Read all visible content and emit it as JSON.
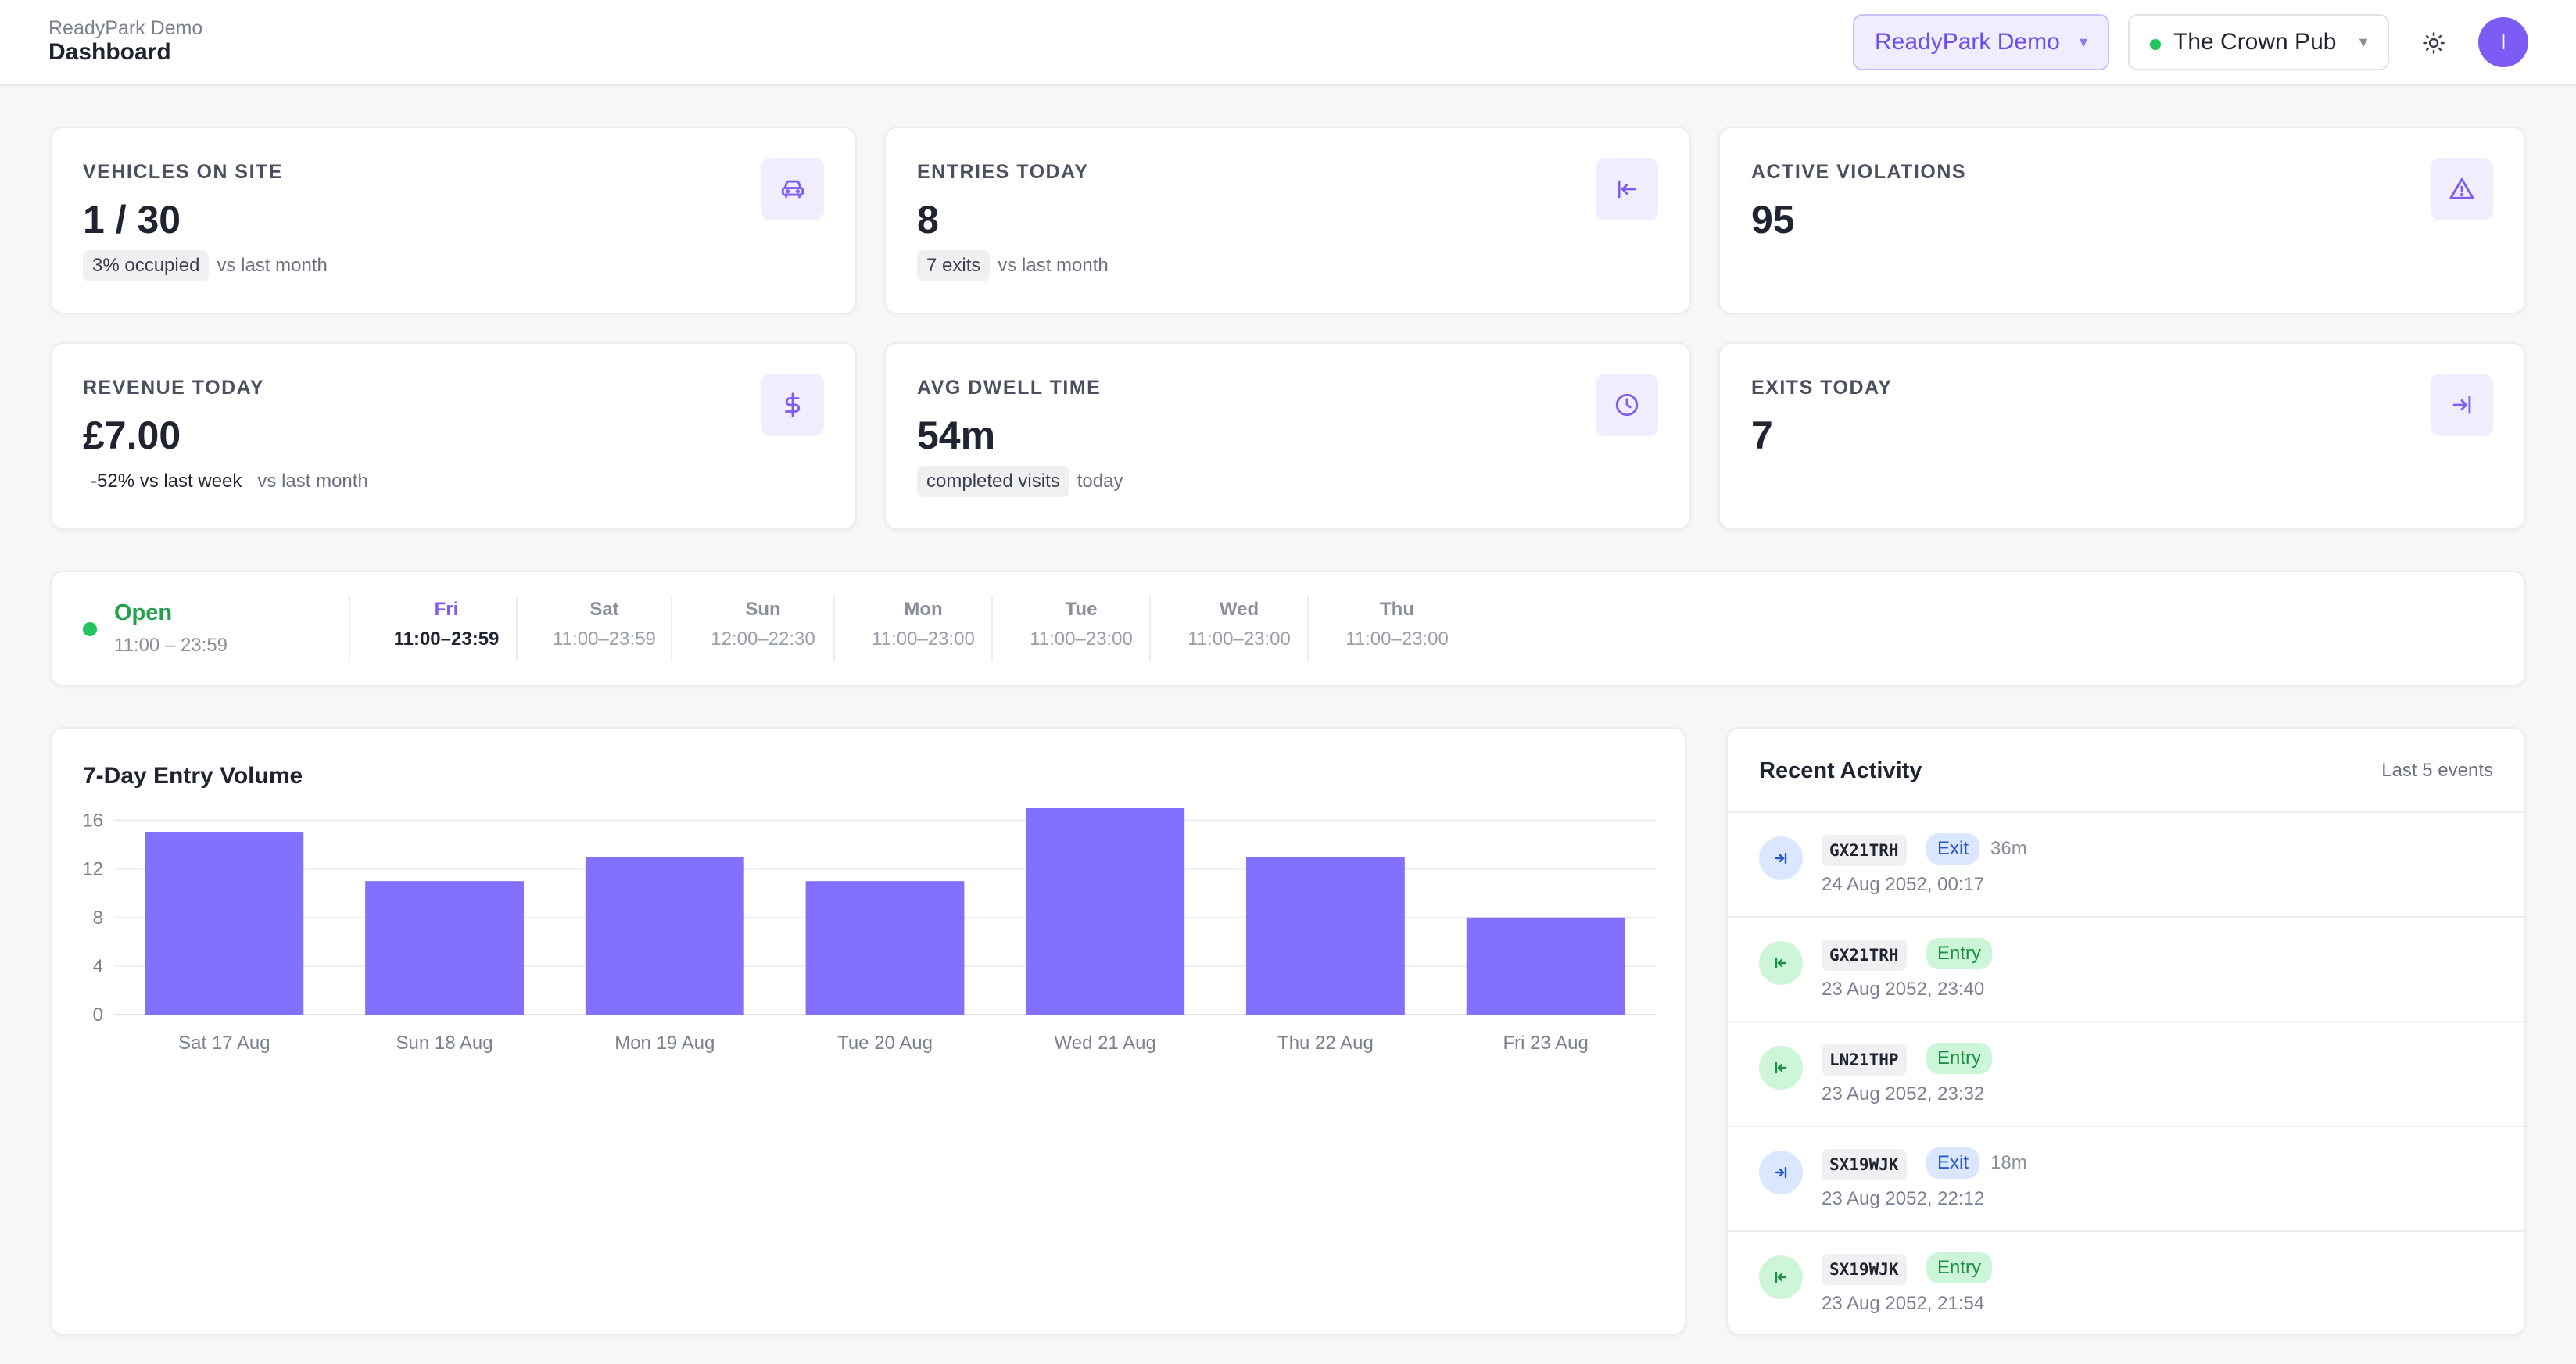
{
  "header": {
    "subtitle": "ReadyPark Demo",
    "title": "Dashboard",
    "org_select": "ReadyPark Demo",
    "site_select": "The Crown Pub",
    "avatar_initial": "I"
  },
  "stats": [
    {
      "label": "VEHICLES ON SITE",
      "value": "1 / 30",
      "chip": "3% occupied",
      "note": "vs last month",
      "icon": "car-icon"
    },
    {
      "label": "ENTRIES TODAY",
      "value": "8",
      "chip": "7 exits",
      "note": "vs last month",
      "icon": "entry-arrow-icon"
    },
    {
      "label": "ACTIVE VIOLATIONS",
      "value": "95",
      "icon": "warning-triangle-icon"
    },
    {
      "label": "REVENUE TODAY",
      "value": "£7.00",
      "plain": "-52% vs last week",
      "note": "vs last month",
      "icon": "dollar-icon"
    },
    {
      "label": "AVG DWELL TIME",
      "value": "54m",
      "chip": "completed visits",
      "note": "today",
      "icon": "clock-icon"
    },
    {
      "label": "EXITS TODAY",
      "value": "7",
      "icon": "exit-arrow-icon"
    }
  ],
  "hours": {
    "status": "Open",
    "today_range": "11:00 – 23:59",
    "days": [
      {
        "day": "Fri",
        "time": "11:00–23:59",
        "active": true
      },
      {
        "day": "Sat",
        "time": "11:00–23:59"
      },
      {
        "day": "Sun",
        "time": "12:00–22:30"
      },
      {
        "day": "Mon",
        "time": "11:00–23:00"
      },
      {
        "day": "Tue",
        "time": "11:00–23:00"
      },
      {
        "day": "Wed",
        "time": "11:00–23:00"
      },
      {
        "day": "Thu",
        "time": "11:00–23:00"
      }
    ]
  },
  "chart": {
    "title": "7-Day Entry Volume"
  },
  "chart_data": {
    "type": "bar",
    "title": "7-Day Entry Volume",
    "categories": [
      "Sat 17 Aug",
      "Sun 18 Aug",
      "Mon 19 Aug",
      "Tue 20 Aug",
      "Wed 21 Aug",
      "Thu 22 Aug",
      "Fri 23 Aug"
    ],
    "values": [
      15,
      11,
      13,
      11,
      17,
      13,
      8
    ],
    "yticks": [
      0,
      4,
      8,
      12,
      16
    ],
    "ylim": [
      0,
      17
    ],
    "grid": true,
    "color": "#8470ff"
  },
  "activity": {
    "title": "Recent Activity",
    "note": "Last 5 events",
    "events": [
      {
        "plate": "GX21TRH",
        "type": "Exit",
        "duration": "36m",
        "time": "24 Aug 2052, 00:17"
      },
      {
        "plate": "GX21TRH",
        "type": "Entry",
        "duration": "",
        "time": "23 Aug 2052, 23:40"
      },
      {
        "plate": "LN21THP",
        "type": "Entry",
        "duration": "",
        "time": "23 Aug 2052, 23:32"
      },
      {
        "plate": "SX19WJK",
        "type": "Exit",
        "duration": "18m",
        "time": "23 Aug 2052, 22:12"
      },
      {
        "plate": "SX19WJK",
        "type": "Entry",
        "duration": "",
        "time": "23 Aug 2052, 21:54"
      }
    ]
  },
  "colors": {
    "accent": "#7c5cf5",
    "open": "#22c55e",
    "exit": "#2b56c9",
    "entry": "#1e8e44"
  }
}
